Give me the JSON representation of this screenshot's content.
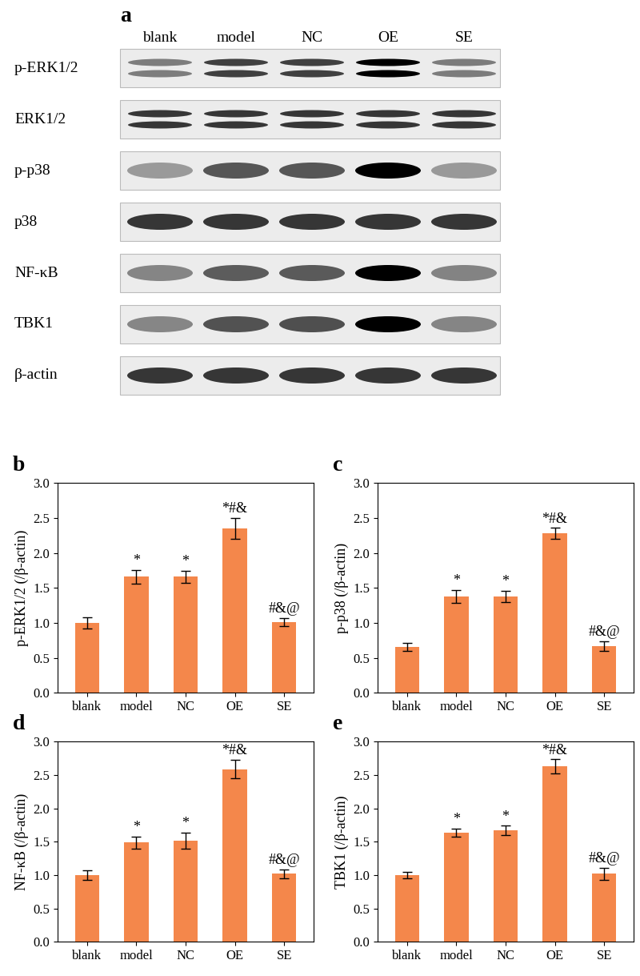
{
  "blot": {
    "panel_label": "a",
    "columns": [
      "blank",
      "model",
      "NC",
      "OE",
      "SE"
    ],
    "rows": [
      "p-ERK1/2",
      "ERK1/2",
      "p-p38",
      "p38",
      "NF-κB",
      "TBK1",
      "β-actin"
    ]
  },
  "chart_data": [
    {
      "type": "bar",
      "panel_label": "b",
      "y_label": "p-ERK1/2 (/β-actin)",
      "categories": [
        "blank",
        "model",
        "NC",
        "OE",
        "SE"
      ],
      "values": [
        1.0,
        1.66,
        1.66,
        2.35,
        1.01
      ],
      "errors": [
        0.08,
        0.1,
        0.09,
        0.15,
        0.06
      ],
      "annotations": [
        null,
        "*",
        "*",
        "*#&",
        "#&@"
      ],
      "color": "#f4874b",
      "ylim": [
        0.0,
        3.0
      ],
      "yticks": [
        0.0,
        0.5,
        1.0,
        1.5,
        2.0,
        2.5,
        3.0
      ]
    },
    {
      "type": "bar",
      "panel_label": "c",
      "y_label": "p-p38 (/β-actin)",
      "categories": [
        "blank",
        "model",
        "NC",
        "OE",
        "SE"
      ],
      "values": [
        0.66,
        1.38,
        1.38,
        2.28,
        0.67
      ],
      "errors": [
        0.06,
        0.09,
        0.08,
        0.08,
        0.07
      ],
      "annotations": [
        null,
        "*",
        "*",
        "*#&",
        "#&@"
      ],
      "color": "#f4874b",
      "ylim": [
        0.0,
        3.0
      ],
      "yticks": [
        0.0,
        0.5,
        1.0,
        1.5,
        2.0,
        2.5,
        3.0
      ]
    },
    {
      "type": "bar",
      "panel_label": "d",
      "y_label": "NF-κB (/β-actin)",
      "categories": [
        "blank",
        "model",
        "NC",
        "OE",
        "SE"
      ],
      "values": [
        1.0,
        1.49,
        1.52,
        2.59,
        1.02
      ],
      "errors": [
        0.07,
        0.09,
        0.12,
        0.14,
        0.07
      ],
      "annotations": [
        null,
        "*",
        "*",
        "*#&",
        "#&@"
      ],
      "color": "#f4874b",
      "ylim": [
        0.0,
        3.0
      ],
      "yticks": [
        0.0,
        0.5,
        1.0,
        1.5,
        2.0,
        2.5,
        3.0
      ]
    },
    {
      "type": "bar",
      "panel_label": "e",
      "y_label": "TBK1 (/β-actin)",
      "categories": [
        "blank",
        "model",
        "NC",
        "OE",
        "SE"
      ],
      "values": [
        1.0,
        1.64,
        1.67,
        2.63,
        1.02
      ],
      "errors": [
        0.05,
        0.06,
        0.07,
        0.11,
        0.09
      ],
      "annotations": [
        null,
        "*",
        "*",
        "*#&",
        "#&@"
      ],
      "color": "#f4874b",
      "ylim": [
        0.0,
        3.0
      ],
      "yticks": [
        0.0,
        0.5,
        1.0,
        1.5,
        2.0,
        2.5,
        3.0
      ]
    }
  ]
}
